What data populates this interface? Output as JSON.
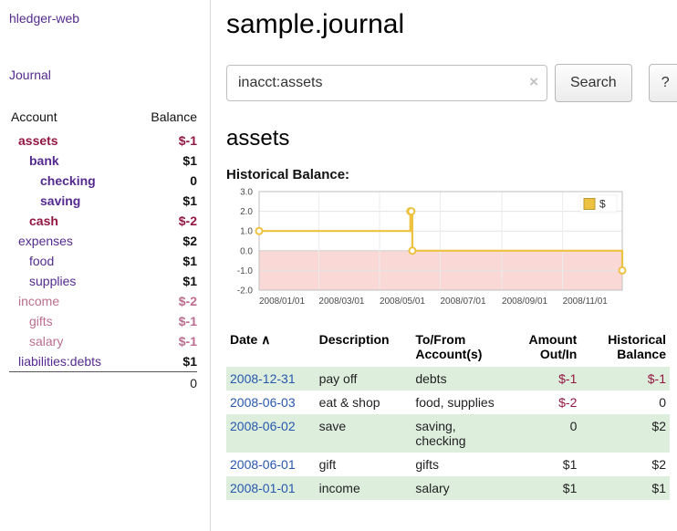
{
  "colors": {
    "link_purple": "#552a90",
    "link_blue": "#2857ae",
    "negative_strong": "#941742",
    "negative_muted": "#bd6d8f",
    "row_green": "#ddeedd",
    "chart_line": "#edc240",
    "chart_negative_region": "#f9d8d6"
  },
  "app": {
    "title": "hledger-web"
  },
  "sidebar": {
    "journal_link": "Journal",
    "accounts_header": {
      "account": "Account",
      "balance": "Balance"
    },
    "accounts": [
      {
        "name": "assets",
        "balance": "$-1",
        "indent": 1,
        "bold": true,
        "variant": "neg"
      },
      {
        "name": "bank",
        "balance": "$1",
        "indent": 2,
        "bold": true,
        "variant": "pos"
      },
      {
        "name": "checking",
        "balance": "0",
        "indent": 3,
        "bold": true,
        "variant": "pos"
      },
      {
        "name": "saving",
        "balance": "$1",
        "indent": 3,
        "bold": true,
        "variant": "pos"
      },
      {
        "name": "cash",
        "balance": "$-2",
        "indent": 2,
        "bold": true,
        "variant": "neg"
      },
      {
        "name": "expenses",
        "balance": "$2",
        "indent": 1,
        "bold": false,
        "variant": "pos"
      },
      {
        "name": "food",
        "balance": "$1",
        "indent": 2,
        "bold": false,
        "variant": "pos"
      },
      {
        "name": "supplies",
        "balance": "$1",
        "indent": 2,
        "bold": false,
        "variant": "pos"
      },
      {
        "name": "income",
        "balance": "$-2",
        "indent": 1,
        "bold": false,
        "variant": "negmuted"
      },
      {
        "name": "gifts",
        "balance": "$-1",
        "indent": 2,
        "bold": false,
        "variant": "negmuted"
      },
      {
        "name": "salary",
        "balance": "$-1",
        "indent": 2,
        "bold": false,
        "variant": "negmuted"
      },
      {
        "name": "liabilities:debts",
        "balance": "$1",
        "indent": 1,
        "bold": false,
        "variant": "pos"
      }
    ],
    "total": "0"
  },
  "main": {
    "title": "sample.journal",
    "search": {
      "value": "inacct:assets",
      "clear_icon": "×",
      "search_button": "Search",
      "help_button": "?"
    },
    "account_heading": "assets",
    "chart_title": "Historical Balance:"
  },
  "chart_data": {
    "type": "line",
    "step": true,
    "title": "Historical Balance",
    "series": [
      {
        "name": "$",
        "points": [
          [
            "2008-01-01",
            1
          ],
          [
            "2008-06-01",
            2
          ],
          [
            "2008-06-02",
            2
          ],
          [
            "2008-06-03",
            0
          ],
          [
            "2008-12-31",
            -1
          ]
        ]
      }
    ],
    "x_range": [
      "2008-01-01",
      "2008-12-31"
    ],
    "ylim": [
      -2,
      3
    ],
    "yticks": [
      3,
      2,
      1,
      0,
      -1,
      -2
    ],
    "xticks": [
      "2008/01/01",
      "2008/03/01",
      "2008/05/01",
      "2008/07/01",
      "2008/09/01",
      "2008/11/01"
    ],
    "grid": true,
    "legend": {
      "label": "$",
      "position": "top-right"
    }
  },
  "register": {
    "columns": {
      "date": "Date",
      "description": "Description",
      "accounts": "To/From Account(s)",
      "amount": "Amount Out/In",
      "balance": "Historical Balance"
    },
    "sort_icon": "∧",
    "rows": [
      {
        "date": "2008-12-31",
        "description": "pay off",
        "accounts": "debts",
        "amount": "$-1",
        "balance": "$-1",
        "amount_negative": true,
        "balance_negative": true
      },
      {
        "date": "2008-06-03",
        "description": "eat & shop",
        "accounts": "food, supplies",
        "amount": "$-2",
        "balance": "0",
        "amount_negative": true,
        "balance_negative": false
      },
      {
        "date": "2008-06-02",
        "description": "save",
        "accounts": "saving, checking",
        "amount": "0",
        "balance": "$2",
        "amount_negative": false,
        "balance_negative": false
      },
      {
        "date": "2008-06-01",
        "description": "gift",
        "accounts": "gifts",
        "amount": "$1",
        "balance": "$2",
        "amount_negative": false,
        "balance_negative": false
      },
      {
        "date": "2008-01-01",
        "description": "income",
        "accounts": "salary",
        "amount": "$1",
        "balance": "$1",
        "amount_negative": false,
        "balance_negative": false
      }
    ]
  }
}
